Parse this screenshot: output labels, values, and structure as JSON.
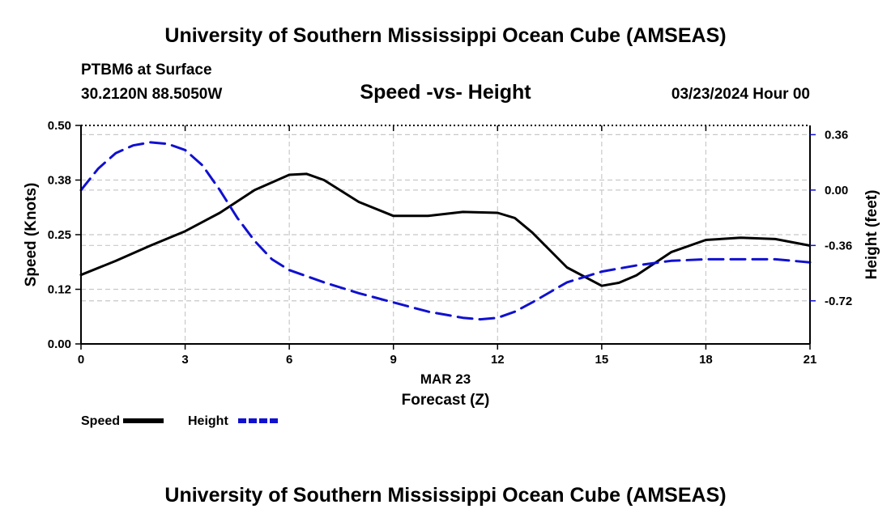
{
  "header": {
    "title": "University of Southern Mississippi Ocean Cube (AMSEAS)",
    "station": "PTBM6 at Surface",
    "coordinates": "30.2120N  88.5050W",
    "chart_title": "Speed -vs- Height",
    "datetime": "03/23/2024 Hour 00"
  },
  "footer": {
    "title": "University of Southern Mississippi Ocean Cube (AMSEAS)"
  },
  "chart_data": {
    "type": "line",
    "title": "Speed -vs- Height",
    "xlabel": "Forecast (Z)",
    "xlabel_date": "MAR 23",
    "ylabel": "Speed (Knots)",
    "y2label": "Height (feet)",
    "xlim": [
      0,
      21
    ],
    "ylim": [
      0,
      0.5
    ],
    "y2lim": [
      -1.0,
      0.42
    ],
    "x_ticks": [
      0,
      3,
      6,
      9,
      12,
      15,
      18,
      21
    ],
    "x_tick_labels": [
      "0",
      "3",
      "6",
      "9",
      "12",
      "15",
      "18",
      "21"
    ],
    "y_ticks": [
      0,
      0.125,
      0.25,
      0.375,
      0.5
    ],
    "y_tick_labels": [
      "0.00",
      "0.12",
      "0.25",
      "0.38",
      "0.50"
    ],
    "y2_ticks": [
      -0.72,
      -0.36,
      0.0,
      0.36
    ],
    "y2_tick_labels": [
      "-0.72",
      "-0.36",
      "0.00",
      "0.36"
    ],
    "grid": true,
    "legend_position": "bottom-left",
    "series": [
      {
        "name": "Speed",
        "axis": "left",
        "color": "#000000",
        "style": "solid",
        "x": [
          0,
          1,
          2,
          3,
          4,
          5,
          6,
          6.5,
          7,
          8,
          9,
          10,
          11,
          12,
          12.5,
          13,
          14,
          15,
          15.5,
          16,
          17,
          18,
          19,
          20,
          21
        ],
        "y": [
          0.158,
          0.19,
          0.225,
          0.258,
          0.3,
          0.352,
          0.387,
          0.389,
          0.375,
          0.325,
          0.293,
          0.293,
          0.302,
          0.3,
          0.288,
          0.255,
          0.175,
          0.133,
          0.14,
          0.157,
          0.21,
          0.238,
          0.243,
          0.24,
          0.225
        ]
      },
      {
        "name": "Height",
        "axis": "right",
        "color": "#1010d0",
        "style": "dashed",
        "x": [
          0,
          0.5,
          1,
          1.5,
          2,
          2.5,
          3,
          3.5,
          4,
          4.5,
          5,
          5.5,
          6,
          7,
          8,
          9,
          10,
          11,
          11.5,
          12,
          12.5,
          13,
          14,
          15,
          16,
          17,
          18,
          19,
          20,
          21
        ],
        "y": [
          0.0,
          0.14,
          0.24,
          0.29,
          0.31,
          0.3,
          0.26,
          0.16,
          0.0,
          -0.18,
          -0.33,
          -0.45,
          -0.52,
          -0.6,
          -0.67,
          -0.73,
          -0.79,
          -0.83,
          -0.84,
          -0.83,
          -0.79,
          -0.73,
          -0.6,
          -0.53,
          -0.49,
          -0.46,
          -0.45,
          -0.45,
          -0.45,
          -0.47
        ]
      }
    ]
  }
}
